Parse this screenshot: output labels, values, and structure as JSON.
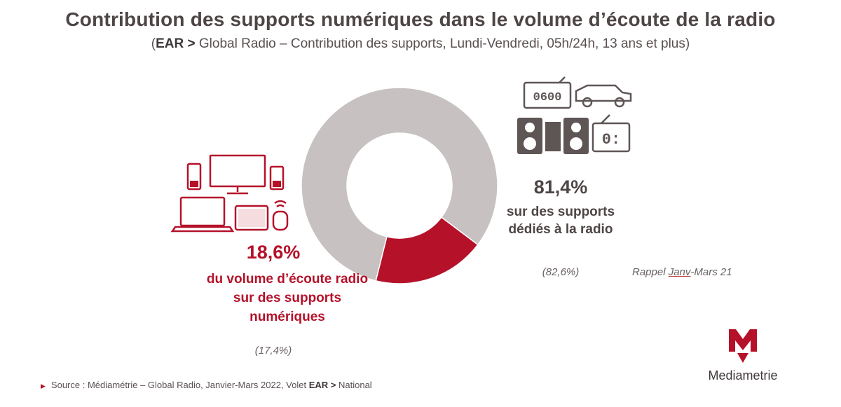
{
  "title": "Contribution des supports numériques dans le volume d’écoute de la radio",
  "subtitle": {
    "open": "(",
    "bold": "EAR >",
    "rest": " Global Radio – Contribution des supports, Lundi-Vendredi, 05h/24h, 13 ans et plus)"
  },
  "chart_data": {
    "type": "pie",
    "donut": true,
    "series": [
      {
        "name": "",
        "value": 18.6,
        "color": "#b5122a",
        "label": "18,6%"
      },
      {
        "name": "",
        "value": 81.4,
        "color": "#c8c1c1",
        "label": "81,4%"
      }
    ],
    "previous_values": [
      "(17,4%)",
      "(82,6%)"
    ]
  },
  "digital": {
    "value": "18,6%",
    "line1": "du volume d’écoute radio",
    "line2": "sur des supports",
    "line3": "numériques",
    "previous": "(17,4%)"
  },
  "dedicated": {
    "value": "81,4%",
    "line1": "sur des supports",
    "line2": "dédiés à la radio",
    "previous": "(82,6%)"
  },
  "reminder": {
    "before": "Rappel ",
    "underlined": "Janv",
    "after": "-Mars 21"
  },
  "clock_display": "0600",
  "radio_display": "0:",
  "source": {
    "before": "Source : Médiamétrie – Global Radio, Janvier-Mars 2022, Volet ",
    "bold": "EAR >",
    "after": " National"
  },
  "logo": {
    "text": "Mediametrie",
    "brand_color": "#b5122a"
  }
}
